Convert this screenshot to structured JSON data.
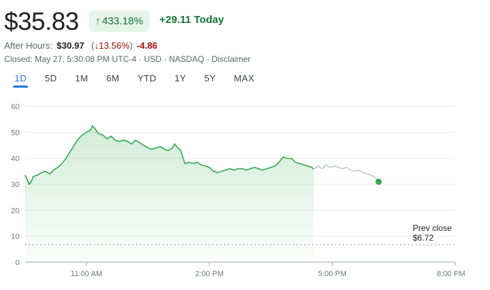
{
  "quote": {
    "price": "$35.83",
    "change_pct": "433.18%",
    "change_pct_arrow": "arrow-up-icon",
    "today_change": "+29.11 Today",
    "after_hours_label": "After Hours:",
    "after_hours_price": "$30.97",
    "after_hours_pct": "13.56%",
    "after_hours_arrow": "arrow-down-icon",
    "after_hours_change": "-4.86",
    "closed_line": "Closed: May 27, 5:30:08 PM UTC-4 · USD · NASDAQ · Disclaimer"
  },
  "tabs": [
    {
      "label": "1D",
      "active": true
    },
    {
      "label": "5D",
      "active": false
    },
    {
      "label": "1M",
      "active": false
    },
    {
      "label": "6M",
      "active": false
    },
    {
      "label": "YTD",
      "active": false
    },
    {
      "label": "1Y",
      "active": false
    },
    {
      "label": "5Y",
      "active": false
    },
    {
      "label": "MAX",
      "active": false
    }
  ],
  "colors": {
    "positive": "#137333",
    "negative": "#a50e0e",
    "accent": "#1a73e8",
    "line": "#34a853",
    "after_hours_line": "#bdc1c6"
  },
  "chart_data": {
    "type": "line",
    "x_axis_ticks": [
      "11:00 AM",
      "2:00 PM",
      "5:00 PM",
      "8:00 PM"
    ],
    "y_axis_ticks": [
      0,
      10,
      20,
      30,
      40,
      50,
      60
    ],
    "ylim": [
      0,
      60
    ],
    "prev_close_label": "Prev close",
    "prev_close_value_label": "$6.72",
    "prev_close": 6.72,
    "x_unit": "hours (time of day)",
    "xlim": [
      9.5,
      20
    ],
    "series": [
      {
        "segment": "regular",
        "color": "#34a853",
        "points": [
          [
            9.5,
            33.5
          ],
          [
            9.55,
            32
          ],
          [
            9.6,
            30
          ],
          [
            9.65,
            31
          ],
          [
            9.7,
            33
          ],
          [
            9.8,
            33.5
          ],
          [
            9.9,
            34.5
          ],
          [
            10.0,
            35
          ],
          [
            10.1,
            34
          ],
          [
            10.2,
            35.5
          ],
          [
            10.3,
            36.5
          ],
          [
            10.4,
            38
          ],
          [
            10.5,
            40
          ],
          [
            10.6,
            42.5
          ],
          [
            10.7,
            45
          ],
          [
            10.8,
            47.5
          ],
          [
            10.9,
            49
          ],
          [
            11.0,
            50
          ],
          [
            11.1,
            51
          ],
          [
            11.15,
            52.5
          ],
          [
            11.2,
            51.5
          ],
          [
            11.3,
            49.5
          ],
          [
            11.4,
            49
          ],
          [
            11.5,
            47.5
          ],
          [
            11.6,
            48.5
          ],
          [
            11.7,
            47
          ],
          [
            11.8,
            46.5
          ],
          [
            11.9,
            47
          ],
          [
            12.0,
            46.5
          ],
          [
            12.1,
            45.5
          ],
          [
            12.2,
            47
          ],
          [
            12.3,
            46
          ],
          [
            12.4,
            45
          ],
          [
            12.5,
            44
          ],
          [
            12.6,
            43.5
          ],
          [
            12.7,
            44
          ],
          [
            12.8,
            44.5
          ],
          [
            12.9,
            43.5
          ],
          [
            13.0,
            43
          ],
          [
            13.1,
            44
          ],
          [
            13.15,
            45.5
          ],
          [
            13.2,
            44.5
          ],
          [
            13.3,
            43
          ],
          [
            13.4,
            38
          ],
          [
            13.5,
            38.5
          ],
          [
            13.6,
            38
          ],
          [
            13.7,
            38.5
          ],
          [
            13.8,
            37.5
          ],
          [
            13.9,
            37
          ],
          [
            14.0,
            36.5
          ],
          [
            14.1,
            35
          ],
          [
            14.2,
            34.5
          ],
          [
            14.3,
            35
          ],
          [
            14.4,
            35.5
          ],
          [
            14.5,
            36
          ],
          [
            14.6,
            35.5
          ],
          [
            14.7,
            36
          ],
          [
            14.8,
            36
          ],
          [
            14.9,
            35.5
          ],
          [
            15.0,
            36
          ],
          [
            15.1,
            36.5
          ],
          [
            15.2,
            36
          ],
          [
            15.3,
            35.5
          ],
          [
            15.4,
            36
          ],
          [
            15.5,
            36.5
          ],
          [
            15.6,
            37
          ],
          [
            15.7,
            38.5
          ],
          [
            15.8,
            40.5
          ],
          [
            15.9,
            40
          ],
          [
            16.0,
            40
          ],
          [
            16.1,
            38.5
          ],
          [
            16.2,
            38
          ],
          [
            16.3,
            37.5
          ],
          [
            16.4,
            37
          ],
          [
            16.5,
            36.5
          ],
          [
            16.55,
            35.83
          ]
        ]
      },
      {
        "segment": "after_hours",
        "color": "#bdc1c6",
        "points": [
          [
            16.55,
            35.83
          ],
          [
            16.65,
            37
          ],
          [
            16.75,
            36
          ],
          [
            16.85,
            37.5
          ],
          [
            16.95,
            36.5
          ],
          [
            17.05,
            37
          ],
          [
            17.15,
            36.5
          ],
          [
            17.25,
            36
          ],
          [
            17.35,
            36.5
          ],
          [
            17.45,
            35.5
          ],
          [
            17.55,
            35
          ],
          [
            17.65,
            35.5
          ],
          [
            17.75,
            34.5
          ],
          [
            17.85,
            34
          ],
          [
            17.95,
            33.5
          ],
          [
            18.05,
            32.5
          ],
          [
            18.13,
            30.97
          ]
        ]
      }
    ]
  }
}
